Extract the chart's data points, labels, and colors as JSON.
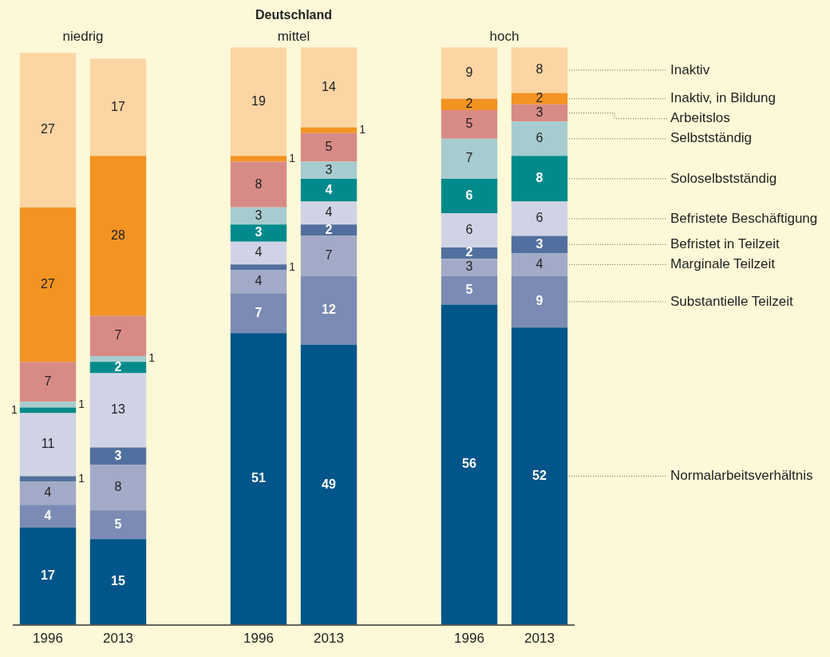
{
  "chart_data": {
    "type": "bar",
    "title": "Deutschland",
    "stacked": true,
    "data_labels": true,
    "legend": "right",
    "tick_labels": "x",
    "grid": false,
    "annotations": [
      "niedrig",
      "mittel",
      "hoch"
    ],
    "categories": [
      "1996",
      "2013",
      null,
      "1996",
      "2013",
      null,
      "1996",
      "2013"
    ],
    "series": [
      {
        "name": "Normalarbeitsverhältnis",
        "color": "#00558a",
        "values": [
          17,
          15,
          null,
          51,
          49,
          null,
          56,
          52
        ]
      },
      {
        "name": "Substantielle Teilzeit",
        "color": "#7b8bb5",
        "values": [
          4,
          5,
          null,
          7,
          12,
          null,
          5,
          9
        ]
      },
      {
        "name": "Marginale Teilzeit",
        "color": "#a3aac8",
        "values": [
          4,
          8,
          null,
          4,
          7,
          null,
          3,
          4
        ]
      },
      {
        "name": "Befristet in Teilzeit",
        "color": "#52709f",
        "values": [
          1,
          3,
          null,
          1,
          2,
          null,
          2,
          3
        ]
      },
      {
        "name": "Befristete Beschäftigung",
        "color": "#d0d3e6",
        "values": [
          11,
          13,
          null,
          4,
          4,
          null,
          6,
          6
        ]
      },
      {
        "name": "Soloselbstständig",
        "color": "#008a8c",
        "values": [
          1,
          2,
          null,
          3,
          4,
          null,
          6,
          8
        ]
      },
      {
        "name": "Selbstständig",
        "color": "#a6cccf",
        "values": [
          1,
          1,
          null,
          3,
          3,
          null,
          7,
          6
        ]
      },
      {
        "name": "Arbeitslos",
        "color": "#d88b86",
        "values": [
          7,
          7,
          null,
          8,
          5,
          null,
          5,
          3
        ]
      },
      {
        "name": "Inaktiv, in Bildung",
        "color": "#f39322",
        "values": [
          27,
          28,
          null,
          1,
          1,
          null,
          2,
          2
        ]
      },
      {
        "name": "Inaktiv",
        "color": "#fdd5a4",
        "values": [
          27,
          17,
          null,
          19,
          14,
          null,
          9,
          8
        ]
      }
    ]
  }
}
